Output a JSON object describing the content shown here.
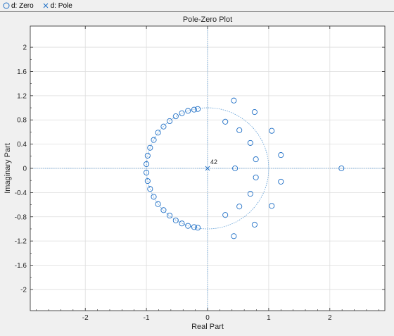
{
  "legend": {
    "zero_label": "d: Zero",
    "pole_label": "d: Pole"
  },
  "colors": {
    "series": "#1f6fc6",
    "unit_circle": "#5b9bd5",
    "background": "#f0f0f0",
    "plot_background": "#ffffff"
  },
  "chart_data": {
    "type": "scatter",
    "title": "Pole-Zero Plot",
    "xlabel": "Real Part",
    "ylabel": "Imaginary Part",
    "xlim": [
      -2.9,
      2.9
    ],
    "ylim": [
      -2.35,
      2.35
    ],
    "xticks": [
      -2,
      -1,
      0,
      1,
      2
    ],
    "yticks": [
      -2,
      -1.6,
      -1.2,
      -0.8,
      -0.4,
      0,
      0.4,
      0.8,
      1.2,
      1.6,
      2
    ],
    "grid": true,
    "unit_circle": true,
    "series": [
      {
        "name": "d: Zero",
        "marker": "circle",
        "points": [
          [
            -0.16,
            0.98
          ],
          [
            -0.22,
            0.97
          ],
          [
            -0.32,
            0.95
          ],
          [
            -0.42,
            0.91
          ],
          [
            -0.52,
            0.86
          ],
          [
            -0.62,
            0.78
          ],
          [
            -0.72,
            0.69
          ],
          [
            -0.81,
            0.59
          ],
          [
            -0.88,
            0.47
          ],
          [
            -0.94,
            0.34
          ],
          [
            -0.98,
            0.21
          ],
          [
            -1.0,
            0.07
          ],
          [
            -1.0,
            -0.07
          ],
          [
            -0.98,
            -0.21
          ],
          [
            -0.94,
            -0.34
          ],
          [
            -0.88,
            -0.47
          ],
          [
            -0.81,
            -0.59
          ],
          [
            -0.72,
            -0.69
          ],
          [
            -0.62,
            -0.78
          ],
          [
            -0.52,
            -0.86
          ],
          [
            -0.42,
            -0.91
          ],
          [
            -0.32,
            -0.95
          ],
          [
            -0.22,
            -0.97
          ],
          [
            -0.16,
            -0.98
          ],
          [
            0.43,
            1.12
          ],
          [
            0.29,
            0.77
          ],
          [
            0.52,
            0.63
          ],
          [
            0.77,
            0.93
          ],
          [
            0.7,
            0.42
          ],
          [
            0.79,
            0.15
          ],
          [
            0.45,
            0.0
          ],
          [
            0.79,
            -0.15
          ],
          [
            0.7,
            -0.42
          ],
          [
            0.52,
            -0.63
          ],
          [
            0.29,
            -0.77
          ],
          [
            0.77,
            -0.93
          ],
          [
            0.43,
            -1.12
          ],
          [
            1.05,
            0.62
          ],
          [
            1.05,
            -0.62
          ],
          [
            1.2,
            0.22
          ],
          [
            1.2,
            -0.22
          ],
          [
            2.19,
            0.0
          ]
        ]
      },
      {
        "name": "d: Pole",
        "marker": "x",
        "points": [
          [
            0,
            0
          ]
        ],
        "annotation": "42"
      }
    ]
  }
}
